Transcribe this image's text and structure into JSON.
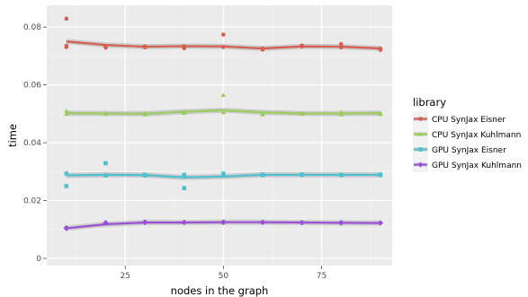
{
  "chart_data": {
    "type": "scatter",
    "xlabel": "nodes in the graph",
    "ylabel": "time",
    "xlim": [
      5,
      93
    ],
    "ylim": [
      -0.0025,
      0.0875
    ],
    "x_ticks": [
      25,
      50,
      75
    ],
    "x_tick_labels": [
      "25",
      "50",
      "75"
    ],
    "y_ticks": [
      0,
      0.02,
      0.04,
      0.06,
      0.08
    ],
    "y_tick_labels": [
      "0",
      "0.02",
      "0.04",
      "0.06",
      "0.08"
    ],
    "grid": true,
    "legend": {
      "title": "library",
      "position": "right"
    },
    "series": [
      {
        "name": "CPU SynJax Eisner",
        "color": "#d55e50",
        "marker": "circle",
        "points": [
          [
            10,
            0.0829
          ],
          [
            10,
            0.0731
          ],
          [
            10,
            0.0735
          ],
          [
            20,
            0.0729
          ],
          [
            20,
            0.0731
          ],
          [
            30,
            0.073
          ],
          [
            30,
            0.0733
          ],
          [
            40,
            0.0727
          ],
          [
            40,
            0.0733
          ],
          [
            50,
            0.0774
          ],
          [
            50,
            0.0731
          ],
          [
            60,
            0.0722
          ],
          [
            60,
            0.0726
          ],
          [
            70,
            0.0733
          ],
          [
            70,
            0.0736
          ],
          [
            80,
            0.0741
          ],
          [
            80,
            0.073
          ],
          [
            90,
            0.0721
          ],
          [
            90,
            0.0725
          ]
        ],
        "trend": [
          [
            10,
            0.075
          ],
          [
            20,
            0.0738
          ],
          [
            30,
            0.0732
          ],
          [
            40,
            0.0734
          ],
          [
            50,
            0.0733
          ],
          [
            60,
            0.0726
          ],
          [
            70,
            0.0733
          ],
          [
            80,
            0.0732
          ],
          [
            90,
            0.0726
          ]
        ]
      },
      {
        "name": "CPU SynJax Kuhlmann",
        "color": "#9acd5c",
        "marker": "triangle",
        "points": [
          [
            10,
            0.051
          ],
          [
            10,
            0.05
          ],
          [
            20,
            0.05
          ],
          [
            20,
            0.0502
          ],
          [
            30,
            0.0498
          ],
          [
            30,
            0.0502
          ],
          [
            40,
            0.0503
          ],
          [
            40,
            0.0508
          ],
          [
            50,
            0.0565
          ],
          [
            50,
            0.0505
          ],
          [
            60,
            0.0498
          ],
          [
            60,
            0.0502
          ],
          [
            70,
            0.05
          ],
          [
            70,
            0.0503
          ],
          [
            80,
            0.0506
          ],
          [
            80,
            0.0498
          ],
          [
            90,
            0.0499
          ],
          [
            90,
            0.0503
          ]
        ],
        "trend": [
          [
            10,
            0.0502
          ],
          [
            20,
            0.0501
          ],
          [
            30,
            0.05
          ],
          [
            40,
            0.0507
          ],
          [
            50,
            0.0512
          ],
          [
            60,
            0.0505
          ],
          [
            70,
            0.0501
          ],
          [
            80,
            0.0501
          ],
          [
            90,
            0.0502
          ]
        ]
      },
      {
        "name": "GPU SynJax Eisner",
        "color": "#4fc0d0",
        "marker": "square",
        "points": [
          [
            10,
            0.0293
          ],
          [
            10,
            0.025
          ],
          [
            20,
            0.0329
          ],
          [
            20,
            0.0287
          ],
          [
            30,
            0.0289
          ],
          [
            30,
            0.0287
          ],
          [
            40,
            0.0289
          ],
          [
            40,
            0.0243
          ],
          [
            50,
            0.0293
          ],
          [
            50,
            0.0289
          ],
          [
            60,
            0.029
          ],
          [
            60,
            0.0288
          ],
          [
            70,
            0.029
          ],
          [
            70,
            0.0289
          ],
          [
            80,
            0.0289
          ],
          [
            80,
            0.0288
          ],
          [
            90,
            0.0288
          ],
          [
            90,
            0.029
          ]
        ],
        "trend": [
          [
            10,
            0.0287
          ],
          [
            20,
            0.0289
          ],
          [
            30,
            0.0288
          ],
          [
            40,
            0.028
          ],
          [
            50,
            0.0283
          ],
          [
            60,
            0.0289
          ],
          [
            70,
            0.0289
          ],
          [
            80,
            0.0289
          ],
          [
            90,
            0.0289
          ]
        ]
      },
      {
        "name": "GPU SynJax Kuhlmann",
        "color": "#9b4fd6",
        "marker": "diamond",
        "points": [
          [
            10,
            0.0103
          ],
          [
            10,
            0.0106
          ],
          [
            20,
            0.0122
          ],
          [
            20,
            0.0124
          ],
          [
            30,
            0.0124
          ],
          [
            30,
            0.0126
          ],
          [
            40,
            0.0124
          ],
          [
            40,
            0.0125
          ],
          [
            50,
            0.0124
          ],
          [
            50,
            0.0126
          ],
          [
            60,
            0.0124
          ],
          [
            60,
            0.0125
          ],
          [
            70,
            0.0123
          ],
          [
            70,
            0.0124
          ],
          [
            80,
            0.0122
          ],
          [
            80,
            0.0124
          ],
          [
            90,
            0.0122
          ],
          [
            90,
            0.0123
          ]
        ],
        "trend": [
          [
            10,
            0.0104
          ],
          [
            20,
            0.0118
          ],
          [
            30,
            0.0124
          ],
          [
            40,
            0.0124
          ],
          [
            50,
            0.0125
          ],
          [
            60,
            0.0125
          ],
          [
            70,
            0.0124
          ],
          [
            80,
            0.0123
          ],
          [
            90,
            0.0122
          ]
        ]
      }
    ]
  }
}
